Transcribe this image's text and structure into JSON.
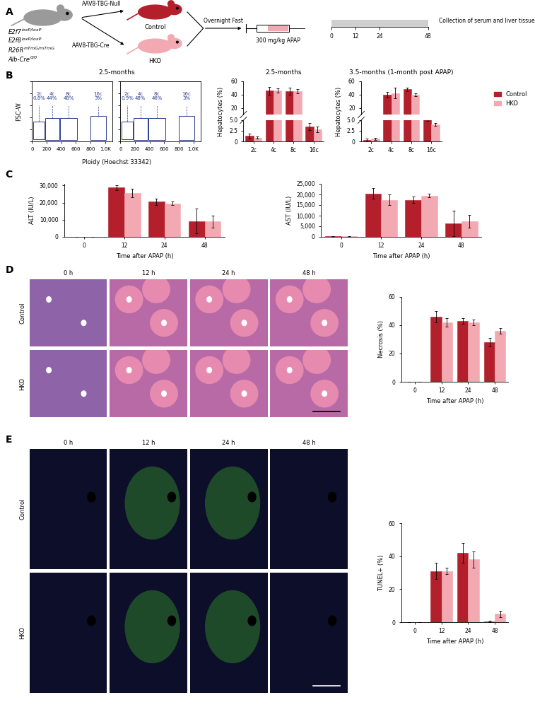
{
  "panel_labels": [
    "A",
    "B",
    "C",
    "D",
    "E"
  ],
  "schematic": {
    "donor_genotype": [
      {
        "gene": "E2f7",
        "allele": "loxP/loxP"
      },
      {
        "gene": "E2f8",
        "allele": "loxP/loxP"
      },
      {
        "gene": "R26R",
        "allele": "mTmG/mTmG"
      },
      {
        "gene": "Alb-Cre",
        "allele": "0/0"
      }
    ],
    "arms": [
      {
        "vector": "AAV8-TBG-Null",
        "group": "Control",
        "color": "#b3202c"
      },
      {
        "vector": "AAV8-TBG-Cre",
        "group": "HKO",
        "color": "#f3a9b2"
      }
    ],
    "fast": "Overnight Fast",
    "dose": "300 mg/kg APAP",
    "timeline": {
      "xlim": [
        0,
        48
      ],
      "xticks": [
        0,
        12,
        24,
        48
      ]
    },
    "collection": "Collection of serum and liver tissue"
  },
  "micrographs": [
    {
      "columns": [
        "0 h",
        "12 h",
        "24 h",
        "48 h"
      ],
      "rows": [
        "Control",
        "HKO"
      ]
    },
    {
      "columns": [
        "0 h",
        "12 h",
        "24 h",
        "48 h"
      ],
      "rows": [
        "Control",
        "HKO"
      ]
    }
  ],
  "chart_data": [
    {
      "type": "flow",
      "title": "2.5-months",
      "x_label": "Ploidy (Hoechst 33342)",
      "y_label": "FSC-W",
      "xlim": [
        0,
        1100
      ],
      "xticks": [
        0,
        200,
        400,
        600,
        800,
        {
          "value": 1000,
          "label": "1.0K"
        }
      ],
      "ylim": [
        0,
        1000
      ],
      "yticks": [
        0,
        200,
        400,
        600,
        800,
        1000
      ],
      "tick_labels": "x",
      "plots": [
        {
          "gates": [
            {
              "label": "2c",
              "value_label": "0.8%",
              "x": [
                20,
                170
              ],
              "y": [
                30,
                330
              ]
            },
            {
              "label": "4c",
              "value_label": "44%",
              "x": [
                180,
                370
              ],
              "y": [
                20,
                390
              ]
            },
            {
              "label": "8c",
              "value_label": "48%",
              "x": [
                380,
                620
              ],
              "y": [
                20,
                390
              ]
            },
            {
              "label": "16c",
              "value_label": "3%",
              "x": [
                800,
                1010
              ],
              "y": [
                20,
                420
              ]
            }
          ]
        },
        {
          "gates": [
            {
              "label": "2c",
              "value_label": "0.9%",
              "x": [
                20,
                170
              ],
              "y": [
                30,
                330
              ]
            },
            {
              "label": "4c",
              "value_label": "48%",
              "x": [
                180,
                370
              ],
              "y": [
                20,
                390
              ]
            },
            {
              "label": "8c",
              "value_label": "46%",
              "x": [
                380,
                620
              ],
              "y": [
                20,
                390
              ]
            },
            {
              "label": "16c",
              "value_label": "3%",
              "x": [
                800,
                1010
              ],
              "y": [
                20,
                420
              ]
            }
          ]
        }
      ]
    },
    {
      "type": "bar",
      "title": "2.5-months",
      "y_label": "Hepatocytes (%)",
      "categories": [
        "2c",
        "4c",
        "8c",
        "16c"
      ],
      "segments": [
        {
          "ylim": [
            0,
            5
          ],
          "yticks": [
            0,
            2.5,
            {
              "value": 5,
              "label": "5.0"
            }
          ]
        },
        {
          "ylim": [
            10,
            60
          ],
          "yticks": [
            20,
            40,
            60
          ]
        }
      ],
      "series": [
        {
          "name": "Control",
          "color": "#b3202c",
          "values": [
            1.3,
            46,
            45,
            3.5
          ],
          "errors": [
            0.6,
            6,
            5,
            0.9
          ]
        },
        {
          "name": "HKO",
          "color": "#f3a9b2",
          "values": [
            0.9,
            46.5,
            45,
            2.8
          ],
          "errors": [
            0.2,
            3,
            3.5,
            0.7
          ]
        }
      ]
    },
    {
      "type": "bar",
      "title": "3.5-months (1-month post APAP)",
      "y_label": "Hepatocytes (%)",
      "categories": [
        "2c",
        "4c",
        "8c",
        "16c"
      ],
      "legend": "right",
      "segments": [
        {
          "ylim": [
            0,
            5
          ],
          "yticks": [
            0,
            2.5,
            {
              "value": 5,
              "label": "5.0"
            }
          ]
        },
        {
          "ylim": [
            10,
            60
          ],
          "yticks": [
            20,
            40,
            60
          ]
        }
      ],
      "series": [
        {
          "name": "Control",
          "color": "#b3202c",
          "values": [
            0.4,
            40,
            48,
            5.3
          ],
          "errors": [
            0.2,
            4,
            2.5,
            0.4
          ]
        },
        {
          "name": "HKO",
          "color": "#f3a9b2",
          "values": [
            0.6,
            42,
            40,
            4.0
          ],
          "errors": [
            0.3,
            8,
            2,
            0.4
          ]
        }
      ]
    },
    {
      "type": "bar",
      "y_label": "ALT (IU/L)",
      "x_label": "Time after APAP (h)",
      "categories": [
        "0",
        "12",
        "24",
        "48"
      ],
      "ylim": [
        0,
        31000
      ],
      "yticks": [
        0,
        {
          "value": 10000,
          "label": "10,000"
        },
        {
          "value": 20000,
          "label": "20,000"
        },
        {
          "value": 30000,
          "label": "30,000"
        }
      ],
      "series": [
        {
          "name": "Control",
          "color": "#b3202c",
          "values": [
            100,
            28800,
            20500,
            9200
          ],
          "errors": [
            50,
            1500,
            1800,
            7200
          ]
        },
        {
          "name": "HKO",
          "color": "#f3a9b2",
          "values": [
            100,
            25500,
            19500,
            9000
          ],
          "errors": [
            40,
            2500,
            1000,
            3500
          ]
        }
      ]
    },
    {
      "type": "bar",
      "y_label": "AST (IU/L)",
      "x_label": "Time after APAP (h)",
      "categories": [
        "0",
        "12",
        "24",
        "48"
      ],
      "ylim": [
        0,
        25000
      ],
      "yticks": [
        0,
        {
          "value": 5000,
          "label": "5,000"
        },
        {
          "value": 10000,
          "label": "10,000"
        },
        {
          "value": 15000,
          "label": "15,000"
        },
        {
          "value": 20000,
          "label": "20,000"
        },
        {
          "value": 25000,
          "label": "25,000"
        }
      ],
      "series": [
        {
          "name": "Control",
          "color": "#b3202c",
          "values": [
            200,
            20500,
            17500,
            6500
          ],
          "errors": [
            100,
            2500,
            1500,
            6000
          ]
        },
        {
          "name": "HKO",
          "color": "#f3a9b2",
          "values": [
            180,
            17500,
            19500,
            7500
          ],
          "errors": [
            80,
            2500,
            800,
            3000
          ]
        }
      ]
    },
    {
      "type": "bar",
      "y_label": "Necrosis (%)",
      "x_label": "Time after APAP (h)",
      "categories": [
        "0",
        "12",
        "24",
        "48"
      ],
      "ylim": [
        0,
        60
      ],
      "yticks": [
        0,
        20,
        40,
        60
      ],
      "series": [
        {
          "name": "Control",
          "color": "#b3202c",
          "values": [
            0,
            46,
            43,
            28
          ],
          "errors": [
            0,
            4,
            2,
            3
          ]
        },
        {
          "name": "HKO",
          "color": "#f3a9b2",
          "values": [
            0,
            42,
            42,
            36
          ],
          "errors": [
            0,
            3,
            2,
            2
          ]
        }
      ]
    },
    {
      "type": "bar",
      "y_label": "TUNEL+ (%)",
      "x_label": "Time after APAP (h)",
      "categories": [
        "0",
        "12",
        "24",
        "48"
      ],
      "ylim": [
        0,
        60
      ],
      "yticks": [
        0,
        20,
        40,
        60
      ],
      "series": [
        {
          "name": "Control",
          "color": "#b3202c",
          "values": [
            0,
            31,
            42,
            0.5
          ],
          "errors": [
            0,
            5,
            6,
            0.5
          ]
        },
        {
          "name": "HKO",
          "color": "#f3a9b2",
          "values": [
            0,
            31,
            38,
            5
          ],
          "errors": [
            0,
            2,
            5,
            2
          ]
        }
      ]
    }
  ]
}
